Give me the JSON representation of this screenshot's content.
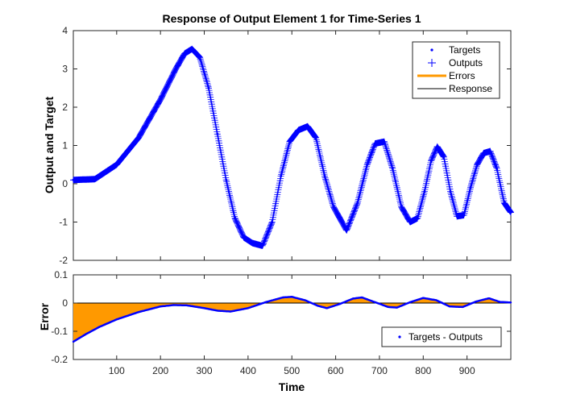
{
  "title": "Response of Output Element 1 for Time-Series 1",
  "colors": {
    "targets": "#0000ff",
    "outputs": "#0000ff",
    "errors": "#ff9900",
    "response": "#000000",
    "error_line": "#0000ff",
    "axis": "#262626"
  },
  "chart_data": [
    {
      "type": "line",
      "panel": "response",
      "xlabel": "",
      "ylabel": "Output and Target",
      "xlim": [
        1,
        1000
      ],
      "ylim": [
        -2,
        4
      ],
      "yticks": [
        -2,
        -1,
        0,
        1,
        2,
        3,
        4
      ],
      "ytick_labels": [
        "-2",
        "-1",
        "0",
        "1",
        "2",
        "3",
        "4"
      ],
      "xticks": [
        100,
        200,
        300,
        400,
        500,
        600,
        700,
        800,
        900
      ],
      "legend": {
        "placement": "top-right",
        "entries": [
          "Targets",
          "Outputs",
          "Errors",
          "Response"
        ]
      },
      "series": [
        {
          "name": "Targets",
          "x": [
            1,
            50,
            100,
            150,
            200,
            235,
            255,
            272,
            290,
            310,
            330,
            350,
            370,
            390,
            410,
            433,
            455,
            475,
            495,
            515,
            536,
            555,
            575,
            595,
            625,
            650,
            672,
            690,
            711,
            730,
            750,
            770,
            787,
            803,
            818,
            832,
            847,
            862,
            877,
            893,
            908,
            923,
            938,
            953,
            968,
            985,
            1000
          ],
          "y": [
            0.1,
            0.12,
            0.5,
            1.2,
            2.2,
            3.0,
            3.4,
            3.52,
            3.3,
            2.5,
            1.3,
            0.1,
            -0.9,
            -1.4,
            -1.55,
            -1.62,
            -1.0,
            0.2,
            1.1,
            1.4,
            1.5,
            1.2,
            0.2,
            -0.6,
            -1.22,
            -0.5,
            0.5,
            1.05,
            1.1,
            0.4,
            -0.6,
            -1.0,
            -0.9,
            -0.2,
            0.6,
            0.97,
            0.7,
            -0.2,
            -0.85,
            -0.82,
            -0.1,
            0.5,
            0.8,
            0.85,
            0.4,
            -0.5,
            -0.75
          ]
        },
        {
          "name": "Outputs",
          "x": [
            1,
            50,
            100,
            150,
            200,
            235,
            255,
            272,
            290,
            310,
            330,
            350,
            370,
            390,
            410,
            433,
            455,
            475,
            495,
            515,
            536,
            555,
            575,
            595,
            625,
            650,
            672,
            690,
            711,
            730,
            750,
            770,
            787,
            803,
            818,
            832,
            847,
            862,
            877,
            893,
            908,
            923,
            938,
            953,
            968,
            985,
            1000
          ],
          "y": [
            0.1,
            0.12,
            0.5,
            1.2,
            2.2,
            3.0,
            3.4,
            3.52,
            3.3,
            2.5,
            1.3,
            0.1,
            -0.9,
            -1.4,
            -1.55,
            -1.62,
            -1.0,
            0.2,
            1.1,
            1.4,
            1.5,
            1.2,
            0.2,
            -0.6,
            -1.22,
            -0.5,
            0.5,
            1.05,
            1.1,
            0.4,
            -0.6,
            -1.0,
            -0.9,
            -0.2,
            0.6,
            0.97,
            0.7,
            -0.2,
            -0.85,
            -0.82,
            -0.1,
            0.5,
            0.8,
            0.85,
            0.4,
            -0.5,
            -0.75
          ]
        }
      ]
    },
    {
      "type": "area",
      "panel": "error",
      "xlabel": "Time",
      "ylabel": "Error",
      "xlim": [
        1,
        1000
      ],
      "ylim": [
        -0.2,
        0.1
      ],
      "yticks": [
        -0.2,
        -0.1,
        0,
        0.1
      ],
      "ytick_labels": [
        "-0.2",
        "-0.1",
        "0",
        "0.1"
      ],
      "xticks": [
        100,
        200,
        300,
        400,
        500,
        600,
        700,
        800,
        900
      ],
      "xtick_labels": [
        "100",
        "200",
        "300",
        "400",
        "500",
        "600",
        "700",
        "800",
        "900"
      ],
      "legend": {
        "placement": "bottom-right",
        "entries": [
          "Targets - Outputs"
        ]
      },
      "series": [
        {
          "name": "Targets - Outputs",
          "x": [
            1,
            30,
            60,
            100,
            150,
            200,
            230,
            260,
            300,
            330,
            360,
            400,
            440,
            480,
            500,
            530,
            560,
            580,
            610,
            640,
            660,
            690,
            720,
            740,
            770,
            800,
            830,
            860,
            890,
            920,
            950,
            975,
            1000
          ],
          "y": [
            -0.137,
            -0.11,
            -0.085,
            -0.058,
            -0.032,
            -0.012,
            -0.007,
            -0.008,
            -0.018,
            -0.027,
            -0.03,
            -0.018,
            0.003,
            0.02,
            0.022,
            0.01,
            -0.01,
            -0.018,
            -0.003,
            0.016,
            0.02,
            0.003,
            -0.014,
            -0.016,
            0.003,
            0.018,
            0.01,
            -0.012,
            -0.014,
            0.005,
            0.017,
            0.004,
            0.002
          ]
        }
      ]
    }
  ]
}
